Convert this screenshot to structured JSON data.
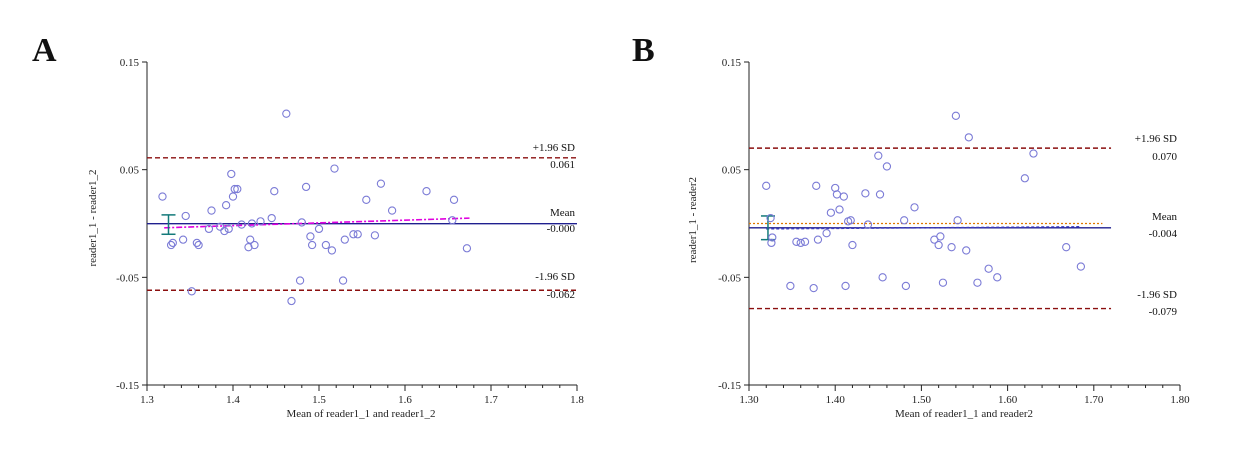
{
  "colors": {
    "point": "#7b7bd6",
    "mean_line": "#1f1f8f",
    "loa_line": "#8b0f0f",
    "regression_a": "#e000e0",
    "zero_line_b": "#e07800",
    "regression_b": "#3a3ac0",
    "ci_bar": "#137a7a",
    "axis": "#222222"
  },
  "chart_data": [
    {
      "panel": "A",
      "type": "scatter",
      "title": "",
      "xlabel": "Mean of reader1_1 and reader1_2",
      "ylabel": "reader1_1 - reader1_2",
      "xlim": [
        1.3,
        1.8
      ],
      "ylim": [
        -0.15,
        0.15
      ],
      "x_ticks": [
        1.3,
        1.4,
        1.5,
        1.6,
        1.7,
        1.8
      ],
      "x_tick_labels": [
        "1.3",
        "1.4",
        "1.5",
        "1.6",
        "1.7",
        "1.8"
      ],
      "y_ticks": [
        -0.15,
        -0.05,
        0.05,
        0.15
      ],
      "y_tick_labels": [
        "-0.15",
        "-0.05",
        "0.05",
        "0.15"
      ],
      "reference_lines": {
        "upper": {
          "y": 0.061,
          "line_end": 1.8,
          "label": "+1.96 SD",
          "value_text": "0.061"
        },
        "mean": {
          "y": -0.0002,
          "line_end": 1.8,
          "label": "Mean",
          "value_text": "-0.000"
        },
        "lower": {
          "y": -0.062,
          "line_end": 1.8,
          "label": "-1.96 SD",
          "value_text": "-0.062"
        }
      },
      "regression_line": {
        "x": [
          1.32,
          1.675
        ],
        "y": [
          -0.004,
          0.005
        ]
      },
      "ci_bar": {
        "x": 1.325,
        "y_low": -0.01,
        "y_high": 0.008
      },
      "x": [
        1.318,
        1.328,
        1.33,
        1.342,
        1.345,
        1.352,
        1.358,
        1.36,
        1.372,
        1.375,
        1.385,
        1.39,
        1.392,
        1.395,
        1.398,
        1.4,
        1.402,
        1.405,
        1.41,
        1.418,
        1.42,
        1.422,
        1.425,
        1.432,
        1.445,
        1.448,
        1.462,
        1.468,
        1.478,
        1.48,
        1.485,
        1.49,
        1.492,
        1.5,
        1.508,
        1.515,
        1.518,
        1.528,
        1.53,
        1.54,
        1.545,
        1.555,
        1.565,
        1.572,
        1.585,
        1.625,
        1.655,
        1.657,
        1.672
      ],
      "y": [
        0.025,
        -0.02,
        -0.018,
        -0.015,
        0.007,
        -0.063,
        -0.018,
        -0.02,
        -0.005,
        0.012,
        -0.003,
        -0.007,
        0.017,
        -0.005,
        0.046,
        0.025,
        0.032,
        0.032,
        -0.001,
        -0.022,
        -0.015,
        0.0,
        -0.02,
        0.002,
        0.005,
        0.03,
        0.102,
        -0.072,
        -0.053,
        0.001,
        0.034,
        -0.012,
        -0.02,
        -0.005,
        -0.02,
        -0.025,
        0.051,
        -0.053,
        -0.015,
        -0.01,
        -0.01,
        0.022,
        -0.011,
        0.037,
        0.012,
        0.03,
        0.003,
        0.022,
        -0.023
      ]
    },
    {
      "panel": "B",
      "type": "scatter",
      "title": "",
      "xlabel": "Mean of reader1_1 and reader2",
      "ylabel": "reader1_1 - reader2",
      "xlim": [
        1.3,
        1.8
      ],
      "ylim": [
        -0.15,
        0.15
      ],
      "x_ticks": [
        1.3,
        1.4,
        1.5,
        1.6,
        1.7,
        1.8
      ],
      "x_tick_labels": [
        "1.30",
        "1.40",
        "1.50",
        "1.60",
        "1.70",
        "1.80"
      ],
      "y_ticks": [
        -0.15,
        -0.05,
        0.05,
        0.15
      ],
      "y_tick_labels": [
        "-0.15",
        "-0.05",
        "0.05",
        "0.15"
      ],
      "reference_lines": {
        "upper": {
          "y": 0.07,
          "line_end": 1.72,
          "label": "+1.96 SD",
          "value_text": "0.070"
        },
        "mean": {
          "y": -0.004,
          "line_end": 1.72,
          "label": "Mean",
          "value_text": "-0.004"
        },
        "lower": {
          "y": -0.079,
          "line_end": 1.72,
          "label": "-1.96 SD",
          "value_text": "-0.079"
        }
      },
      "zero_line": {
        "y": 0.0,
        "x": [
          1.3,
          1.71
        ]
      },
      "regression_line": {
        "x": [
          1.32,
          1.685
        ],
        "y": [
          -0.005,
          -0.003
        ]
      },
      "ci_bar": {
        "x": 1.322,
        "y_low": -0.015,
        "y_high": 0.007
      },
      "x": [
        1.32,
        1.325,
        1.326,
        1.327,
        1.348,
        1.355,
        1.36,
        1.365,
        1.375,
        1.378,
        1.38,
        1.39,
        1.395,
        1.4,
        1.402,
        1.405,
        1.41,
        1.412,
        1.415,
        1.418,
        1.42,
        1.435,
        1.438,
        1.45,
        1.452,
        1.455,
        1.46,
        1.48,
        1.482,
        1.492,
        1.515,
        1.52,
        1.522,
        1.525,
        1.535,
        1.54,
        1.542,
        1.552,
        1.555,
        1.565,
        1.578,
        1.588,
        1.62,
        1.63,
        1.668,
        1.685
      ],
      "y": [
        0.035,
        0.005,
        -0.018,
        -0.013,
        -0.058,
        -0.017,
        -0.018,
        -0.017,
        -0.06,
        0.035,
        -0.015,
        -0.009,
        0.01,
        0.033,
        0.027,
        0.013,
        0.025,
        -0.058,
        0.002,
        0.003,
        -0.02,
        0.028,
        -0.001,
        0.063,
        0.027,
        -0.05,
        0.053,
        0.003,
        -0.058,
        0.015,
        -0.015,
        -0.02,
        -0.012,
        -0.055,
        -0.022,
        0.1,
        0.003,
        -0.025,
        0.08,
        -0.055,
        -0.042,
        -0.05,
        0.042,
        0.065,
        -0.022,
        -0.04
      ]
    }
  ]
}
